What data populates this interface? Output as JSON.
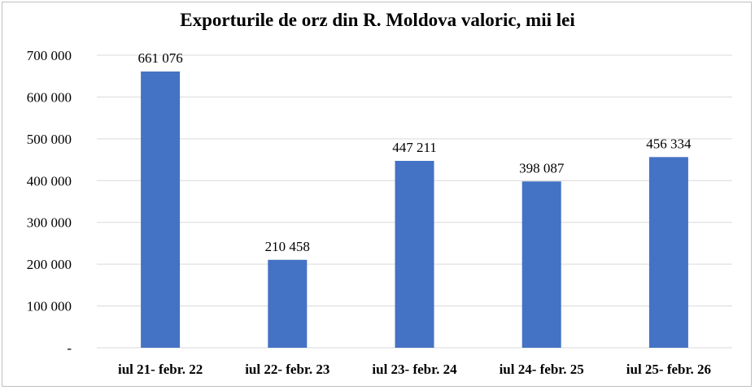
{
  "chart_data": {
    "type": "bar",
    "title": "Exporturile de orz din R. Moldova valoric, mii lei",
    "xlabel": "",
    "ylabel": "",
    "categories": [
      "iul 21- febr. 22",
      "iul 22- febr. 23",
      "iul 23- febr. 24",
      "iul 24- febr. 25",
      "iul 25- febr. 26"
    ],
    "values": [
      661076,
      210458,
      447211,
      398087,
      456334
    ],
    "data_labels": [
      "661 076",
      "210 458",
      "447 211",
      "398 087",
      "456 334"
    ],
    "ylim": [
      0,
      700000
    ],
    "y_ticks": [
      0,
      100000,
      200000,
      300000,
      400000,
      500000,
      600000,
      700000
    ],
    "y_tick_labels": [
      "-",
      "100 000",
      "200 000",
      "300 000",
      "400 000",
      "500 000",
      "600 000",
      "700 000"
    ],
    "grid": true,
    "legend": "none",
    "bar_color": "#4472c4",
    "grid_color": "#d9d9d9"
  }
}
